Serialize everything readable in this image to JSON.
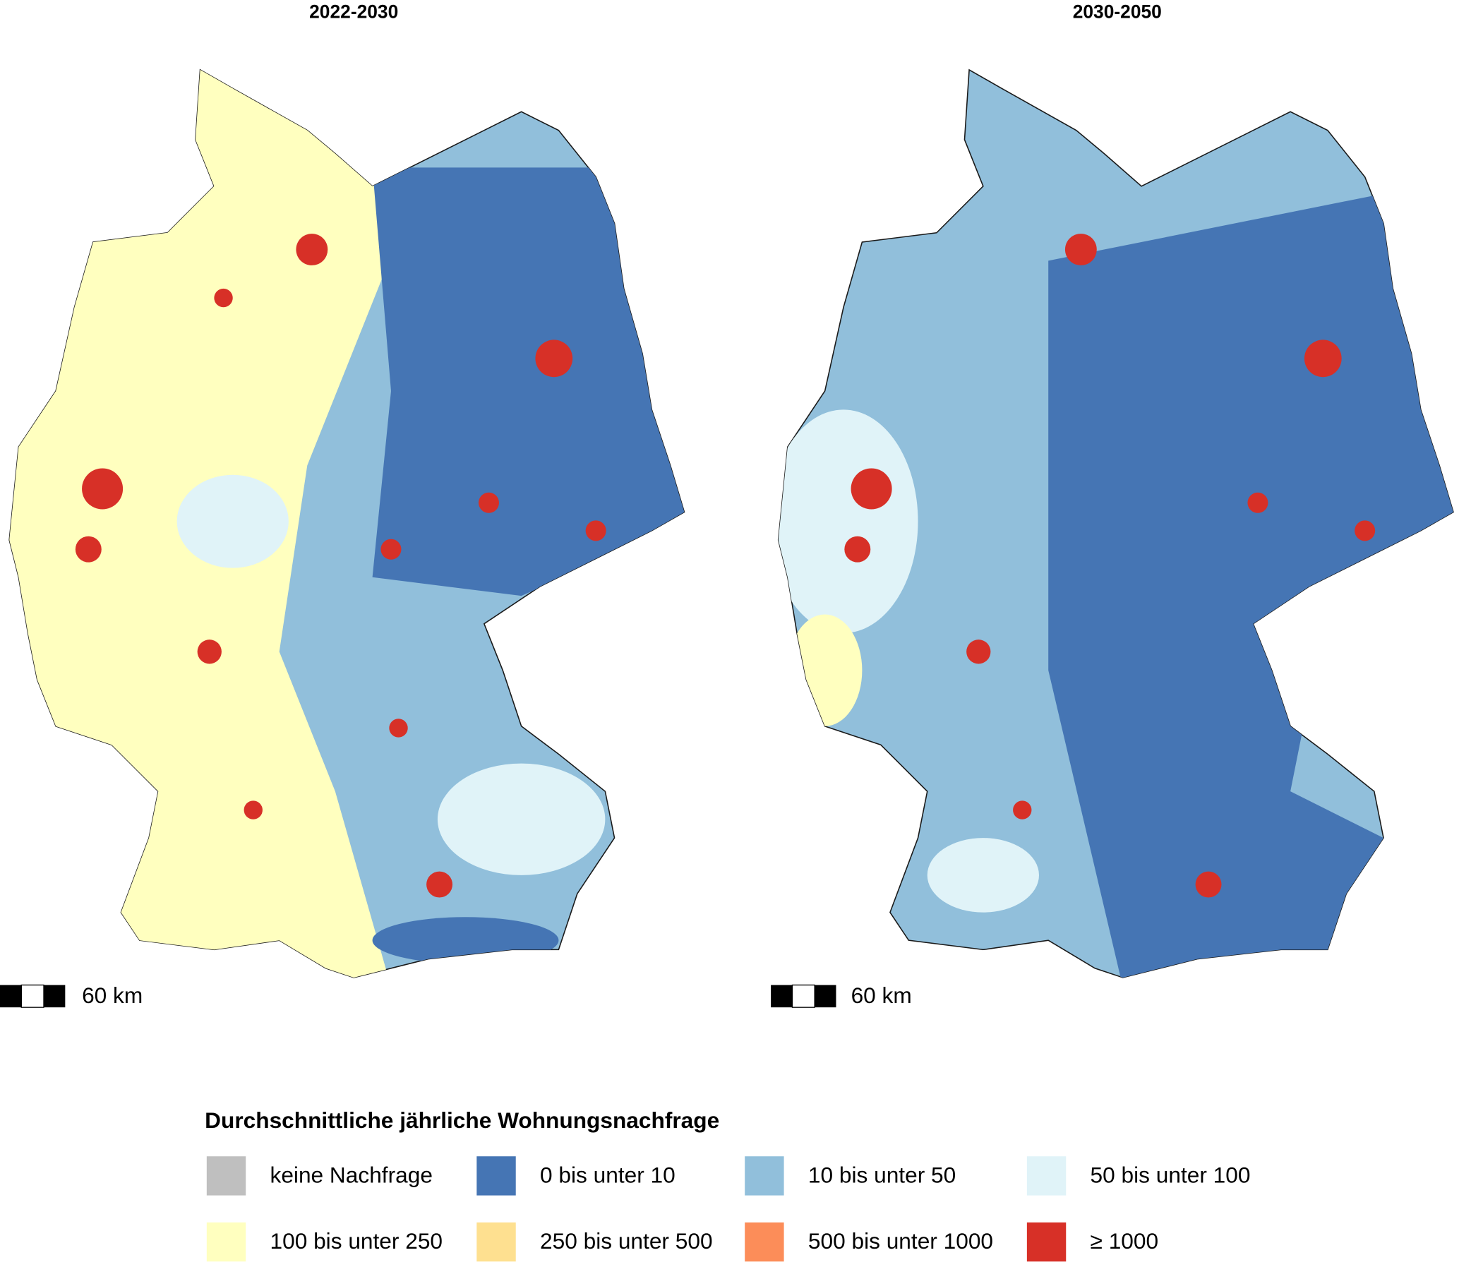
{
  "panels": [
    {
      "title": "2022-2030",
      "scale_label": "60 km"
    },
    {
      "title": "2030-2050",
      "scale_label": "60 km"
    }
  ],
  "legend": {
    "title": "Durchschnittliche jährliche Wohnungsnachfrage",
    "items": [
      {
        "label": "keine Nachfrage",
        "color": "#bfbfbf"
      },
      {
        "label": "0 bis unter 10",
        "color": "#4575b4"
      },
      {
        "label": "10 bis unter 50",
        "color": "#91bfdb"
      },
      {
        "label": "50 bis unter 100",
        "color": "#e0f3f8"
      },
      {
        "label": "100 bis unter 250",
        "color": "#ffffbf"
      },
      {
        "label": "250 bis unter 500",
        "color": "#fee090"
      },
      {
        "label": "500 bis unter 1000",
        "color": "#fc8d59"
      },
      {
        "label": "≥ 1000",
        "color": "#d73027"
      }
    ]
  }
}
